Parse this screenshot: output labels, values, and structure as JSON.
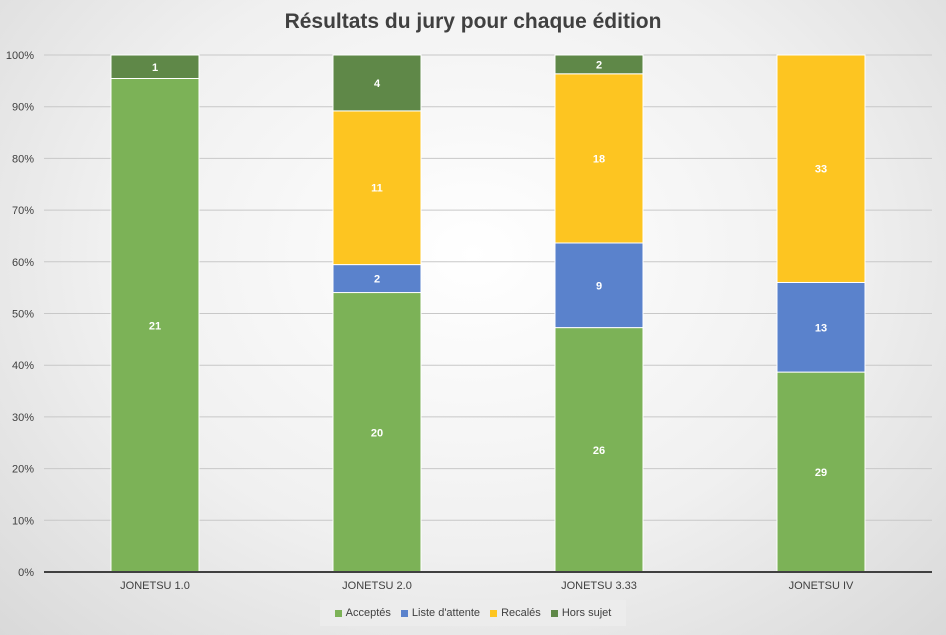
{
  "chart_data": {
    "type": "bar",
    "stacked": true,
    "percent_stacked": true,
    "title": "Résultats du jury pour chaque édition",
    "categories": [
      "JONETSU 1.0",
      "JONETSU 2.0",
      "JONETSU 3.33",
      "JONETSU IV"
    ],
    "series": [
      {
        "name": "Acceptés",
        "color": "#7cb257",
        "values": [
          21,
          20,
          26,
          29
        ]
      },
      {
        "name": "Liste d'attente",
        "color": "#5a82cc",
        "values": [
          0,
          2,
          9,
          13
        ]
      },
      {
        "name": "Recalés",
        "color": "#fdc521",
        "values": [
          0,
          11,
          18,
          33
        ]
      },
      {
        "name": "Hors sujet",
        "color": "#5f8848",
        "values": [
          1,
          4,
          2,
          0
        ]
      }
    ],
    "y_ticks": [
      "0%",
      "10%",
      "20%",
      "30%",
      "40%",
      "50%",
      "60%",
      "70%",
      "80%",
      "90%",
      "100%"
    ],
    "ylim": [
      0,
      100
    ],
    "grid": true,
    "legend_position": "bottom",
    "data_labels": true
  }
}
